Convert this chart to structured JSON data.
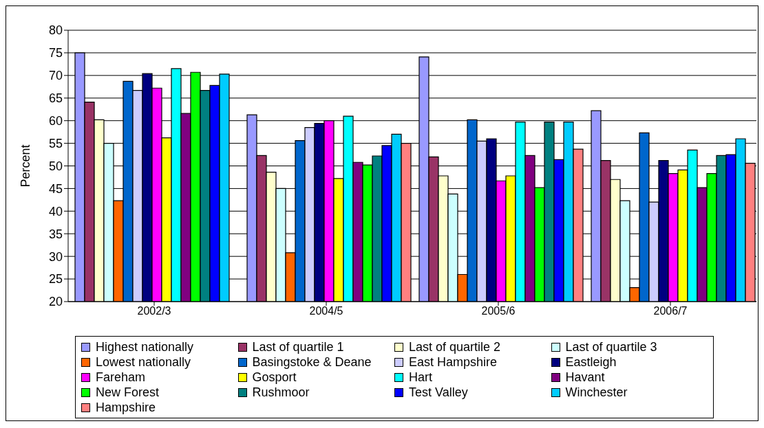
{
  "chart_data": {
    "type": "bar",
    "ylabel": "Percent",
    "categories": [
      "2002/3",
      "2004/5",
      "2005/6",
      "2006/7"
    ],
    "ylim": [
      20,
      80
    ],
    "yticks": [
      20,
      25,
      30,
      35,
      40,
      45,
      50,
      55,
      60,
      65,
      70,
      75,
      80
    ],
    "grid": "y",
    "legend": "bottom",
    "series": [
      {
        "name": "Highest nationally",
        "color": "#9999ff",
        "values": [
          75,
          61.3,
          74.1,
          62.2
        ]
      },
      {
        "name": "Last of quartile 1",
        "color": "#993366",
        "values": [
          64.1,
          52.3,
          52,
          51.2
        ]
      },
      {
        "name": "Last of quartile 2",
        "color": "#ffffcc",
        "values": [
          60.2,
          48.6,
          47.8,
          47
        ]
      },
      {
        "name": "Last of quartile 3",
        "color": "#ccffff",
        "values": [
          55,
          45,
          43.8,
          42.3
        ]
      },
      {
        "name": "Lowest nationally",
        "color": "#ff6600",
        "values": [
          42.3,
          30.8,
          26,
          23.1
        ]
      },
      {
        "name": "Basingstoke & Deane",
        "color": "#0066cc",
        "values": [
          68.7,
          55.6,
          60.2,
          57.3
        ]
      },
      {
        "name": "East Hampshire",
        "color": "#ccccff",
        "values": [
          66.7,
          58.5,
          55.5,
          42
        ]
      },
      {
        "name": "Eastleigh",
        "color": "#000080",
        "values": [
          70.4,
          59.4,
          56,
          51.2
        ]
      },
      {
        "name": "Fareham",
        "color": "#ff00ff",
        "values": [
          67.2,
          60,
          46.7,
          48.3
        ]
      },
      {
        "name": "Gosport",
        "color": "#ffff00",
        "values": [
          56.2,
          47.2,
          47.8,
          49.1
        ]
      },
      {
        "name": "Hart",
        "color": "#00ffff",
        "values": [
          71.5,
          61,
          59.7,
          53.5
        ]
      },
      {
        "name": "Havant",
        "color": "#800080",
        "values": [
          61.6,
          50.8,
          52.3,
          45.2
        ]
      },
      {
        "name": "New Forest",
        "color": "#00ff00",
        "values": [
          70.7,
          50.2,
          45.2,
          48.3
        ]
      },
      {
        "name": "Rushmoor",
        "color": "#008080",
        "values": [
          66.7,
          52.2,
          59.7,
          52.3
        ]
      },
      {
        "name": "Test Valley",
        "color": "#0000ff",
        "values": [
          67.8,
          54.5,
          51.4,
          52.5
        ]
      },
      {
        "name": "Winchester",
        "color": "#00ccff",
        "values": [
          70.3,
          57,
          59.7,
          56
        ]
      },
      {
        "name": "Hampshire",
        "color": "#ff8080",
        "values": [
          null,
          55,
          53.7,
          50.6
        ]
      }
    ]
  }
}
